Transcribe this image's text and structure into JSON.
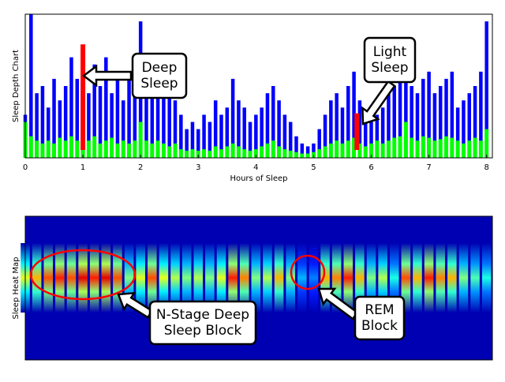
{
  "chart_data": [
    {
      "type": "stem",
      "ylabel": "Sleep Depth Chart",
      "xlabel": "Hours of Sleep",
      "xlim": [
        0,
        8.1
      ],
      "ylim": [
        0,
        1
      ],
      "xticks": [
        0,
        1,
        2,
        3,
        4,
        5,
        6,
        7,
        8
      ],
      "x": [
        0,
        0.1,
        0.2,
        0.3,
        0.4,
        0.5,
        0.6,
        0.7,
        0.8,
        0.9,
        1,
        1.1,
        1.2,
        1.3,
        1.4,
        1.5,
        1.6,
        1.7,
        1.8,
        1.9,
        2,
        2.1,
        2.2,
        2.3,
        2.4,
        2.5,
        2.6,
        2.7,
        2.8,
        2.9,
        3,
        3.1,
        3.2,
        3.3,
        3.4,
        3.5,
        3.6,
        3.7,
        3.8,
        3.9,
        4,
        4.1,
        4.2,
        4.3,
        4.4,
        4.5,
        4.6,
        4.7,
        4.8,
        4.9,
        5,
        5.1,
        5.2,
        5.3,
        5.4,
        5.5,
        5.6,
        5.7,
        5.8,
        5.9,
        6,
        6.1,
        6.2,
        6.3,
        6.4,
        6.5,
        6.6,
        6.7,
        6.8,
        6.9,
        7,
        7.1,
        7.2,
        7.3,
        7.4,
        7.5,
        7.6,
        7.7,
        7.8,
        7.9,
        8
      ],
      "series": [
        {
          "color": "#0000ff",
          "values": [
            0.3,
            1,
            0.45,
            0.5,
            0.35,
            0.55,
            0.4,
            0.5,
            0.7,
            0.55,
            0.6,
            0.45,
            0.65,
            0.5,
            0.7,
            0.45,
            0.55,
            0.4,
            0.6,
            0.5,
            0.95,
            0.55,
            0.45,
            0.6,
            0.5,
            0.55,
            0.4,
            0.3,
            0.2,
            0.25,
            0.2,
            0.3,
            0.25,
            0.4,
            0.3,
            0.35,
            0.55,
            0.4,
            0.35,
            0.25,
            0.3,
            0.35,
            0.45,
            0.5,
            0.4,
            0.3,
            0.25,
            0.15,
            0.1,
            0.08,
            0.1,
            0.2,
            0.3,
            0.4,
            0.45,
            0.35,
            0.5,
            0.6,
            0.4,
            0.3,
            0.25,
            0.3,
            0.35,
            0.45,
            0.5,
            0.6,
            0.75,
            0.5,
            0.45,
            0.55,
            0.6,
            0.45,
            0.5,
            0.55,
            0.6,
            0.35,
            0.4,
            0.45,
            0.5,
            0.6,
            0.95
          ]
        },
        {
          "color": "#00ff00",
          "values": [
            0.25,
            0.15,
            0.12,
            0.1,
            0.12,
            0.1,
            0.14,
            0.12,
            0.15,
            0.12,
            0.1,
            0.12,
            0.15,
            0.1,
            0.12,
            0.14,
            0.1,
            0.12,
            0.1,
            0.12,
            0.25,
            0.12,
            0.1,
            0.12,
            0.1,
            0.08,
            0.1,
            0.06,
            0.05,
            0.06,
            0.05,
            0.06,
            0.05,
            0.08,
            0.06,
            0.08,
            0.1,
            0.08,
            0.06,
            0.05,
            0.06,
            0.08,
            0.1,
            0.12,
            0.08,
            0.06,
            0.05,
            0.04,
            0.03,
            0.03,
            0.04,
            0.06,
            0.08,
            0.1,
            0.12,
            0.1,
            0.12,
            0.14,
            0.1,
            0.08,
            0.1,
            0.12,
            0.1,
            0.12,
            0.14,
            0.15,
            0.25,
            0.14,
            0.12,
            0.15,
            0.14,
            0.12,
            0.13,
            0.15,
            0.14,
            0.12,
            0.1,
            0.12,
            0.14,
            0.12,
            0.2
          ]
        }
      ],
      "highlights": {
        "color": "#ff0000",
        "x": [
          1,
          5.75
        ],
        "values": [
          0.79,
          0.31
        ]
      },
      "annotations": [
        {
          "lines": [
            "Deep",
            "Sleep"
          ]
        },
        {
          "lines": [
            "Light",
            "Sleep"
          ]
        }
      ]
    },
    {
      "type": "heatmap",
      "ylabel": "Sleep Heat Map",
      "xlim": [
        0,
        8.1
      ],
      "colormap": "jet",
      "x": [
        0,
        0.2,
        0.4,
        0.6,
        0.8,
        1,
        1.2,
        1.4,
        1.6,
        1.8,
        2,
        2.2,
        2.4,
        2.6,
        2.8,
        3,
        3.2,
        3.4,
        3.6,
        3.8,
        4,
        4.2,
        4.4,
        4.6,
        4.8,
        5,
        5.2,
        5.4,
        5.6,
        5.8,
        6,
        6.2,
        6.4,
        6.6,
        6.8,
        7,
        7.2,
        7.4,
        7.6,
        7.8,
        8
      ],
      "values": [
        0.6,
        0.7,
        0.8,
        0.85,
        0.8,
        0.9,
        0.85,
        0.9,
        0.8,
        0.5,
        0.6,
        0.8,
        0.6,
        0.55,
        0.5,
        0.55,
        0.5,
        0.6,
        0.85,
        0.75,
        0.5,
        0.55,
        0.7,
        0.5,
        0.3,
        0.25,
        0.7,
        0.75,
        0.85,
        0.7,
        0.5,
        0.55,
        0.4,
        0.8,
        0.7,
        0.85,
        0.75,
        0.7,
        0.5,
        0.45,
        0.4
      ],
      "annotations": [
        {
          "lines": [
            "N-Stage Deep",
            "Sleep Block"
          ]
        },
        {
          "lines": [
            "REM",
            "Block"
          ]
        }
      ]
    }
  ]
}
